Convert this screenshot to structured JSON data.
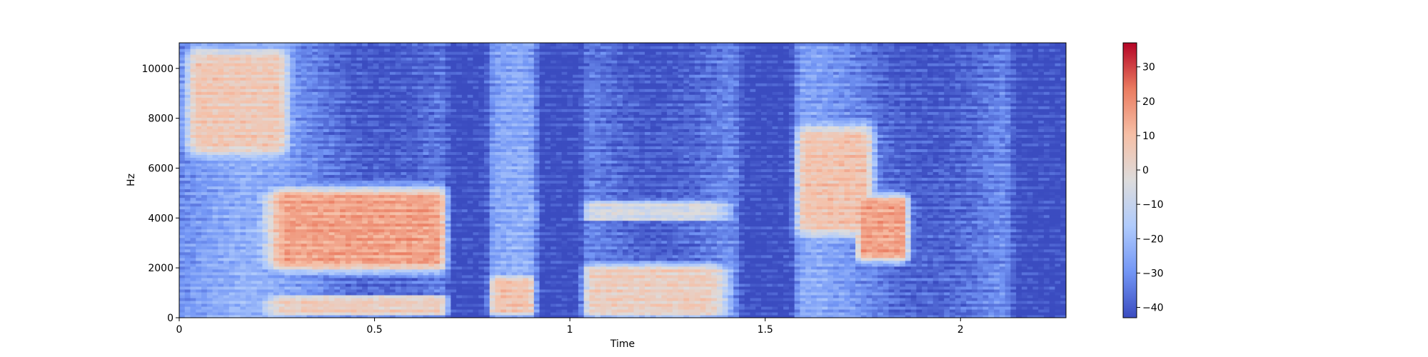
{
  "chart_data": {
    "type": "heatmap",
    "subtype": "spectrogram",
    "title": "",
    "xlabel": "Time",
    "ylabel": "Hz",
    "xlim": [
      0,
      2.27
    ],
    "ylim": [
      0,
      11025
    ],
    "x_ticks": [
      {
        "value": 0,
        "label": "0"
      },
      {
        "value": 0.5,
        "label": "0.5"
      },
      {
        "value": 1,
        "label": "1"
      },
      {
        "value": 1.5,
        "label": "1.5"
      },
      {
        "value": 2,
        "label": "2"
      }
    ],
    "y_ticks": [
      {
        "value": 0,
        "label": "0"
      },
      {
        "value": 2000,
        "label": "2000"
      },
      {
        "value": 4000,
        "label": "4000"
      },
      {
        "value": 6000,
        "label": "6000"
      },
      {
        "value": 8000,
        "label": "8000"
      },
      {
        "value": 10000,
        "label": "10000"
      }
    ],
    "grid": false,
    "colormap": "coolwarm",
    "colormap_stops": [
      "#3b4cc0",
      "#7396f5",
      "#b0cbfc",
      "#dddcdc",
      "#f6bfa6",
      "#ea7b60",
      "#b40426"
    ],
    "colorbar": {
      "range": [
        -43,
        37
      ],
      "ticks": [
        {
          "value": 30,
          "label": "30"
        },
        {
          "value": 20,
          "label": "20"
        },
        {
          "value": 10,
          "label": "10"
        },
        {
          "value": 0,
          "label": "0"
        },
        {
          "value": -10,
          "label": "−10"
        },
        {
          "value": -20,
          "label": "−20"
        },
        {
          "value": -30,
          "label": "−30"
        },
        {
          "value": -40,
          "label": "−40"
        }
      ]
    },
    "floor_db": -43,
    "high_energy_regions_db": [
      {
        "t": [
          0.05,
          0.25
        ],
        "hz": [
          7000,
          10300
        ],
        "db": 6
      },
      {
        "t": [
          0.28,
          0.65
        ],
        "hz": [
          2300,
          4800
        ],
        "db": 16
      },
      {
        "t": [
          0.28,
          0.7
        ],
        "hz": [
          200,
          800
        ],
        "db": 4
      },
      {
        "t": [
          0.8,
          0.9
        ],
        "hz": [
          300,
          1500
        ],
        "db": 8
      },
      {
        "t": [
          1.0,
          1.35
        ],
        "hz": [
          300,
          1900
        ],
        "db": 4
      },
      {
        "t": [
          0.95,
          1.35
        ],
        "hz": [
          4000,
          4600
        ],
        "db": -6
      },
      {
        "t": [
          1.58,
          1.75
        ],
        "hz": [
          3800,
          7200
        ],
        "db": 8
      },
      {
        "t": [
          1.75,
          1.85
        ],
        "hz": [
          2600,
          4600
        ],
        "db": 16
      }
    ],
    "low_energy_gaps": [
      {
        "t": [
          0.7,
          0.78
        ]
      },
      {
        "t": [
          0.93,
          1.02
        ]
      },
      {
        "t": [
          1.45,
          1.56
        ]
      },
      {
        "t": [
          2.15,
          2.27
        ]
      }
    ]
  }
}
